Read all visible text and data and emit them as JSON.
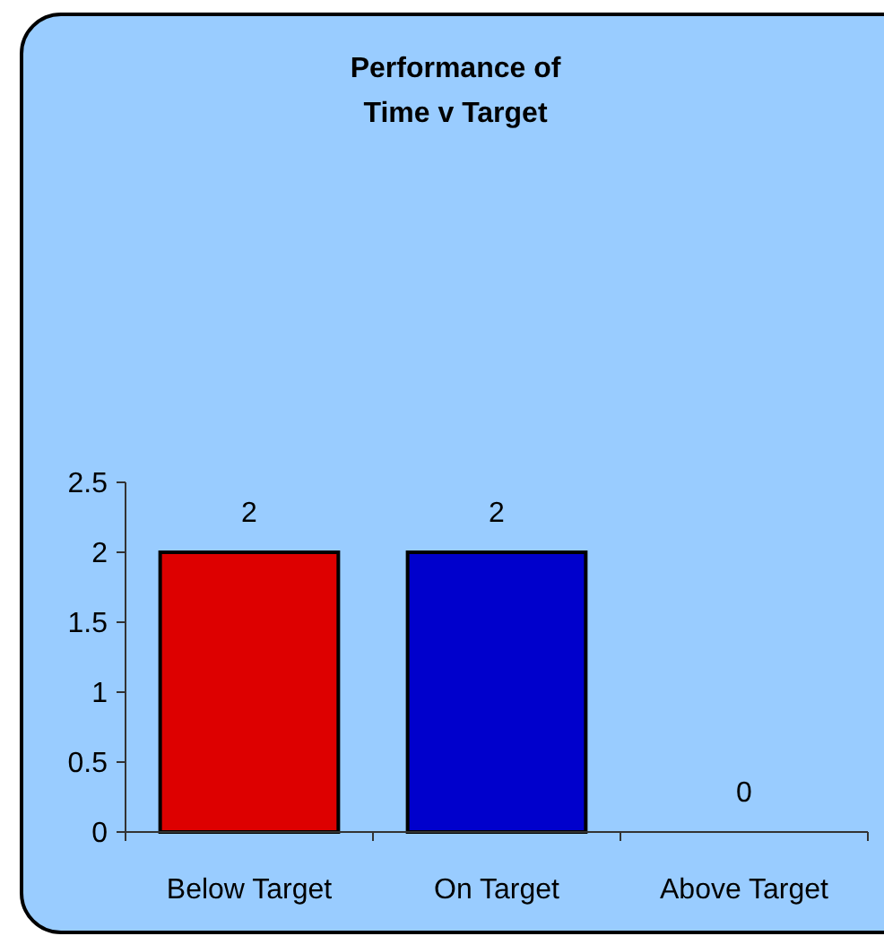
{
  "chart_data": {
    "type": "bar",
    "title": "Performance of\nTime v Target",
    "categories": [
      "Below Target",
      "On Target",
      "Above Target"
    ],
    "values": [
      2,
      2,
      0
    ],
    "colors": [
      "#dd0000",
      "#0000cc",
      null
    ],
    "ylim": [
      0,
      2.5
    ],
    "yticks": [
      0,
      0.5,
      1,
      1.5,
      2,
      2.5
    ],
    "data_labels": true
  }
}
